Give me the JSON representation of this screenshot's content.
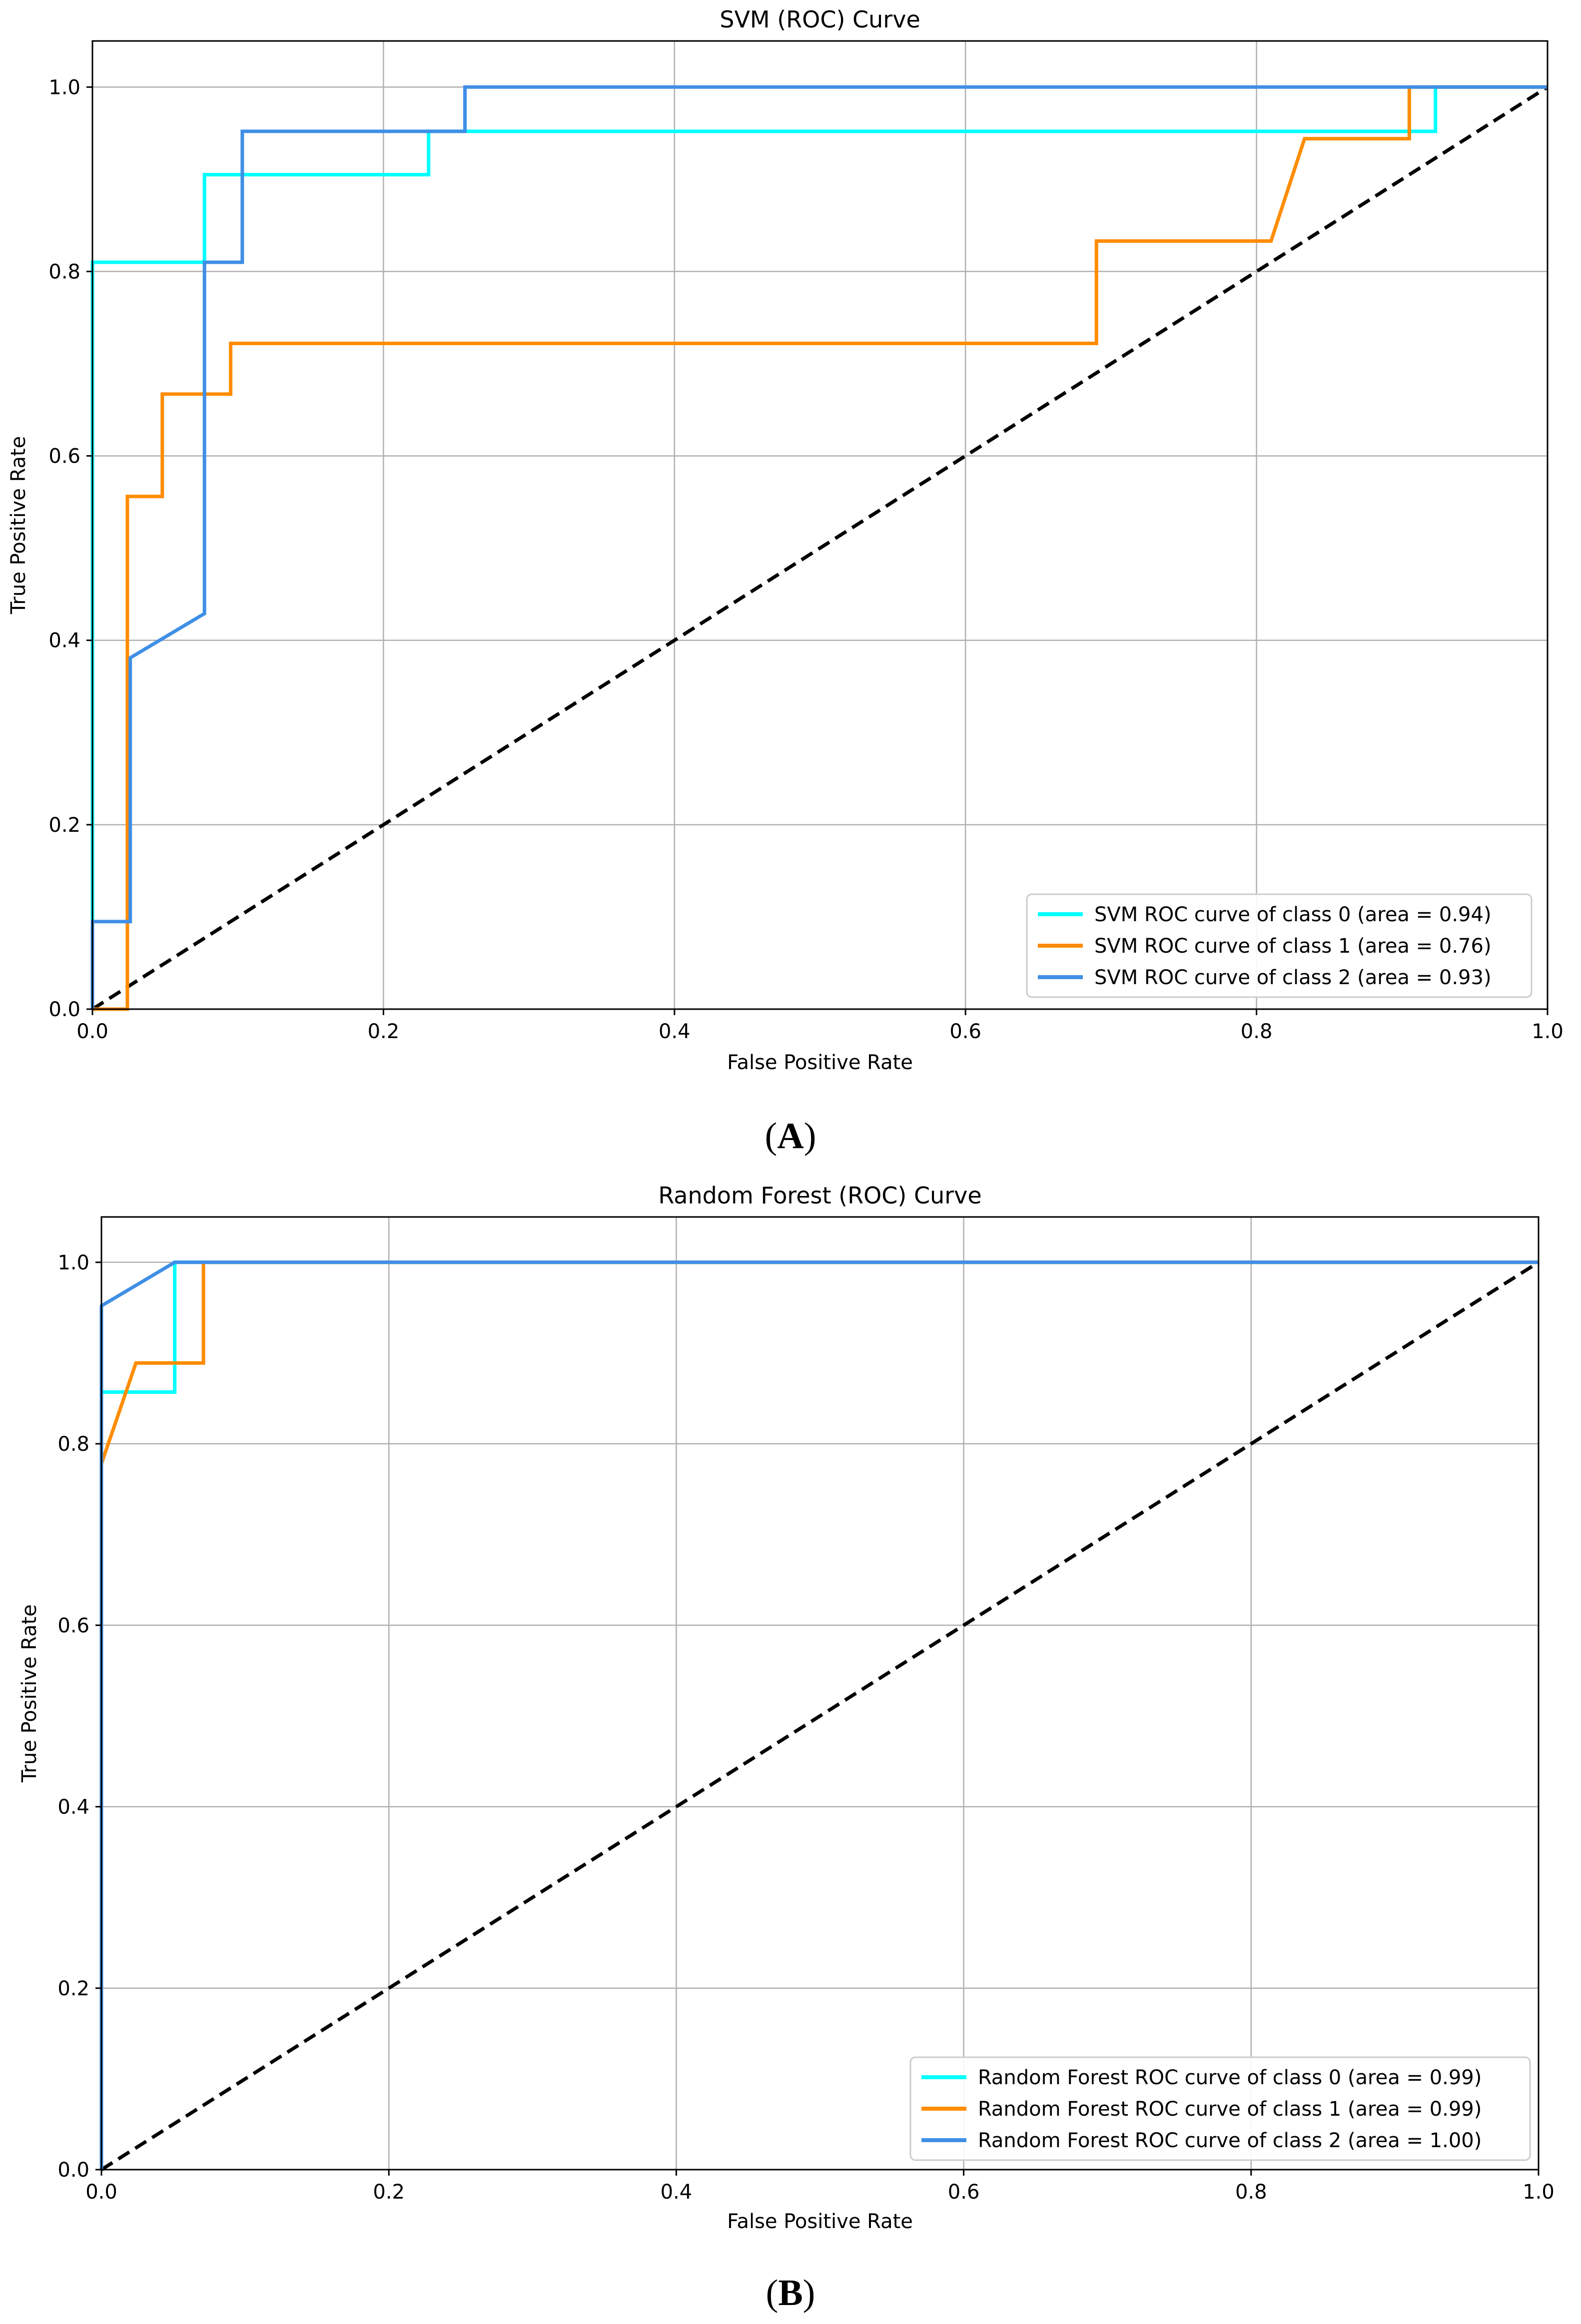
{
  "chart_data": [
    {
      "type": "line",
      "panel_label": "A",
      "title": "SVM (ROC) Curve",
      "xlabel": "False Positive Rate",
      "ylabel": "True Positive Rate",
      "xlim": [
        0.0,
        1.0
      ],
      "ylim": [
        0.0,
        1.05
      ],
      "xticks": [
        "0.0",
        "0.2",
        "0.4",
        "0.6",
        "0.8",
        "1.0"
      ],
      "yticks": [
        "0.0",
        "0.2",
        "0.4",
        "0.6",
        "0.8",
        "1.0"
      ],
      "grid": true,
      "legend_position": "lower-right",
      "baseline": {
        "x": [
          0,
          1
        ],
        "y": [
          0,
          1
        ],
        "style": "dashed",
        "color": "#000000"
      },
      "series": [
        {
          "name": "SVM ROC curve of class 0 (area = 0.94)",
          "color": "#00ffff",
          "x": [
            0,
            0,
            0.077,
            0.077,
            0.231,
            0.231,
            0.923,
            0.923,
            1.0
          ],
          "y": [
            0,
            0.81,
            0.81,
            0.905,
            0.905,
            0.952,
            0.952,
            1.0,
            1.0
          ]
        },
        {
          "name": "SVM ROC curve of class 1 (area = 0.76)",
          "color": "#ff8c00",
          "x": [
            0,
            0.024,
            0.024,
            0.048,
            0.048,
            0.095,
            0.095,
            0.69,
            0.69,
            0.81,
            0.833,
            0.905,
            0.905,
            1.0
          ],
          "y": [
            0,
            0,
            0.556,
            0.556,
            0.667,
            0.667,
            0.722,
            0.722,
            0.833,
            0.833,
            0.944,
            0.944,
            1.0,
            1.0
          ]
        },
        {
          "name": "SVM ROC curve of class 2 (area = 0.93)",
          "color": "#3f8fe6",
          "x": [
            0,
            0,
            0.026,
            0.026,
            0.077,
            0.077,
            0.103,
            0.103,
            0.256,
            0.256,
            1.0
          ],
          "y": [
            0,
            0.095,
            0.095,
            0.381,
            0.429,
            0.81,
            0.81,
            0.952,
            0.952,
            1.0,
            1.0
          ]
        }
      ]
    },
    {
      "type": "line",
      "panel_label": "B",
      "title": "Random Forest (ROC) Curve",
      "xlabel": "False Positive Rate",
      "ylabel": "True Positive Rate",
      "xlim": [
        0.0,
        1.0
      ],
      "ylim": [
        0.0,
        1.05
      ],
      "xticks": [
        "0.0",
        "0.2",
        "0.4",
        "0.6",
        "0.8",
        "1.0"
      ],
      "yticks": [
        "0.0",
        "0.2",
        "0.4",
        "0.6",
        "0.8",
        "1.0"
      ],
      "grid": true,
      "legend_position": "lower-right",
      "baseline": {
        "x": [
          0,
          1
        ],
        "y": [
          0,
          1
        ],
        "style": "dashed",
        "color": "#000000"
      },
      "series": [
        {
          "name": "Random Forest ROC curve of class 0 (area = 0.99)",
          "color": "#00ffff",
          "x": [
            0,
            0,
            0.051,
            0.051,
            1.0
          ],
          "y": [
            0,
            0.857,
            0.857,
            1.0,
            1.0
          ]
        },
        {
          "name": "Random Forest ROC curve of class 1 (area = 0.99)",
          "color": "#ff8c00",
          "x": [
            0,
            0,
            0.024,
            0.071,
            0.071,
            1.0
          ],
          "y": [
            0,
            0.778,
            0.889,
            0.889,
            1.0,
            1.0
          ]
        },
        {
          "name": "Random Forest ROC curve of class 2 (area = 1.00)",
          "color": "#3f8fe6",
          "x": [
            0,
            0,
            0.051,
            1.0
          ],
          "y": [
            0,
            0.952,
            1.0,
            1.0
          ]
        }
      ]
    }
  ]
}
